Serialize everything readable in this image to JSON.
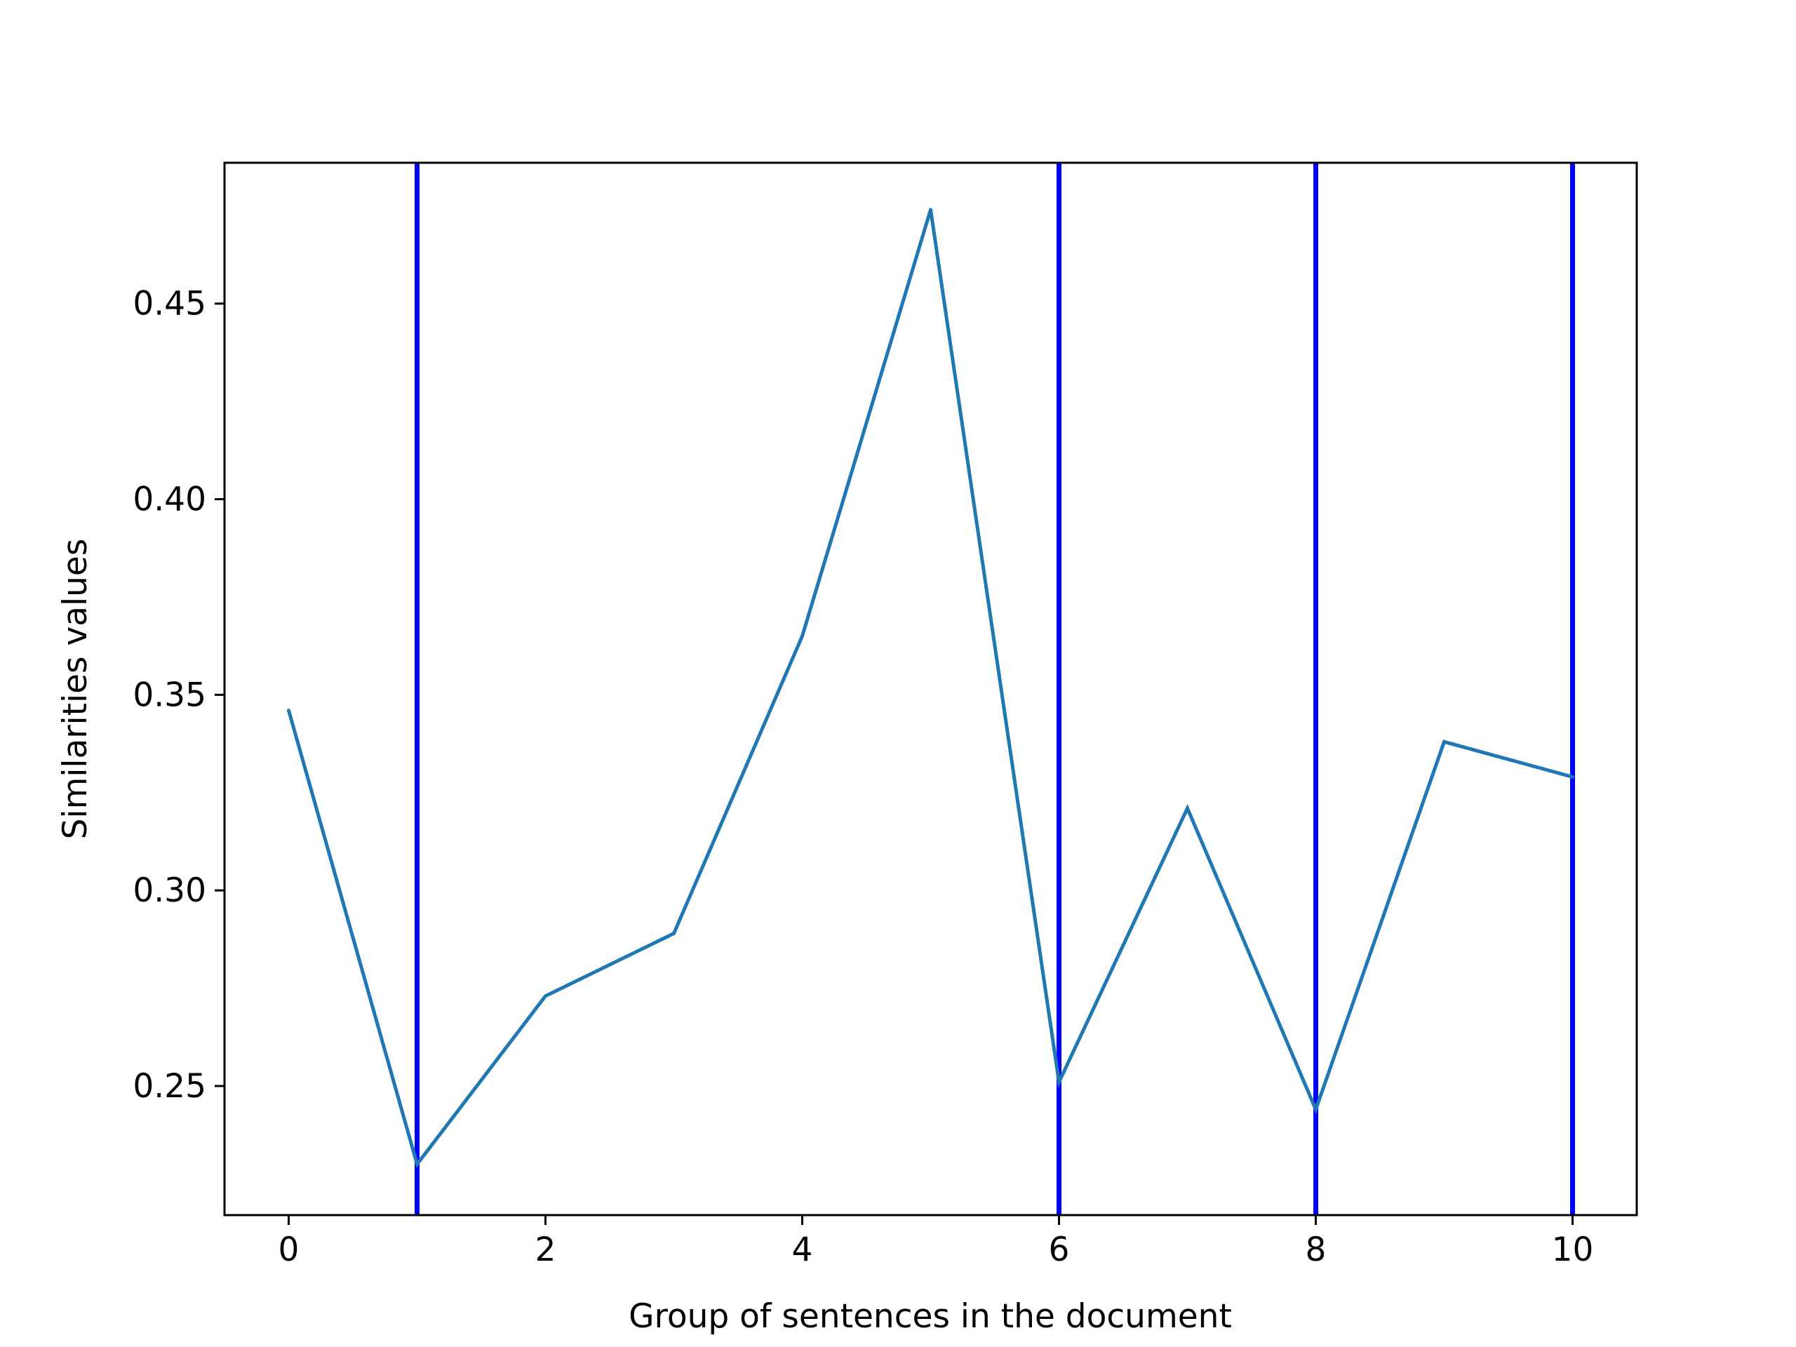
{
  "chart_data": {
    "type": "line",
    "title": "",
    "xlabel": "Group of sentences in the document",
    "ylabel": "Similarities values",
    "xlim": [
      -0.5,
      10.5
    ],
    "ylim": [
      0.217,
      0.486
    ],
    "grid": false,
    "x_ticks": [
      0,
      2,
      4,
      6,
      8,
      10
    ],
    "x_tick_labels": [
      "0",
      "2",
      "4",
      "6",
      "8",
      "10"
    ],
    "y_ticks": [
      0.25,
      0.3,
      0.35,
      0.4,
      0.45
    ],
    "y_tick_labels": [
      "0.25",
      "0.30",
      "0.35",
      "0.40",
      "0.45"
    ],
    "series": [
      {
        "color": "#1f77b4",
        "x": [
          0,
          1,
          2,
          3,
          4,
          5,
          6,
          7,
          8,
          9,
          10
        ],
        "values": [
          0.346,
          0.23,
          0.273,
          0.289,
          0.365,
          0.474,
          0.251,
          0.321,
          0.244,
          0.338,
          0.329
        ]
      }
    ],
    "vertical_lines": {
      "color": "#0000ff",
      "x": [
        1,
        6,
        8,
        10
      ]
    }
  }
}
